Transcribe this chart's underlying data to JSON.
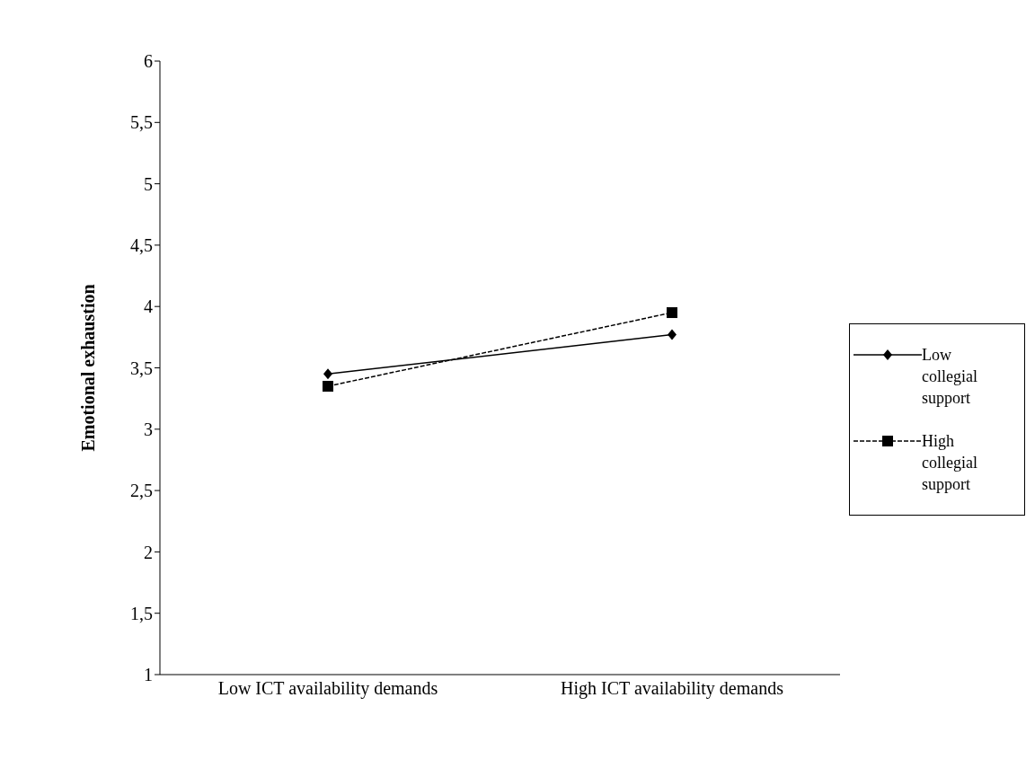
{
  "chart_data": {
    "type": "line",
    "ylabel": "Emotional exhaustion",
    "categories": [
      "Low ICT availability demands",
      "High ICT availability demands"
    ],
    "series": [
      {
        "name": "Low collegial support",
        "color": "#000000",
        "values": [
          3.45,
          3.77
        ],
        "marker": "diamond",
        "line_style": "solid"
      },
      {
        "name": "High collegial support",
        "color": "#000000",
        "values": [
          3.35,
          3.95
        ],
        "marker": "square",
        "line_style": "dashed"
      }
    ],
    "ylim": [
      1,
      6
    ],
    "yticks": [
      1,
      {
        "value": 1.5,
        "label": "1,5"
      },
      2,
      {
        "value": 2.5,
        "label": "2,5"
      },
      3,
      {
        "value": 3.5,
        "label": "3,5"
      },
      4,
      {
        "value": 4.5,
        "label": "4,5"
      },
      5,
      {
        "value": 5.5,
        "label": "5,5"
      },
      6
    ],
    "grid": false,
    "legend": "right"
  }
}
